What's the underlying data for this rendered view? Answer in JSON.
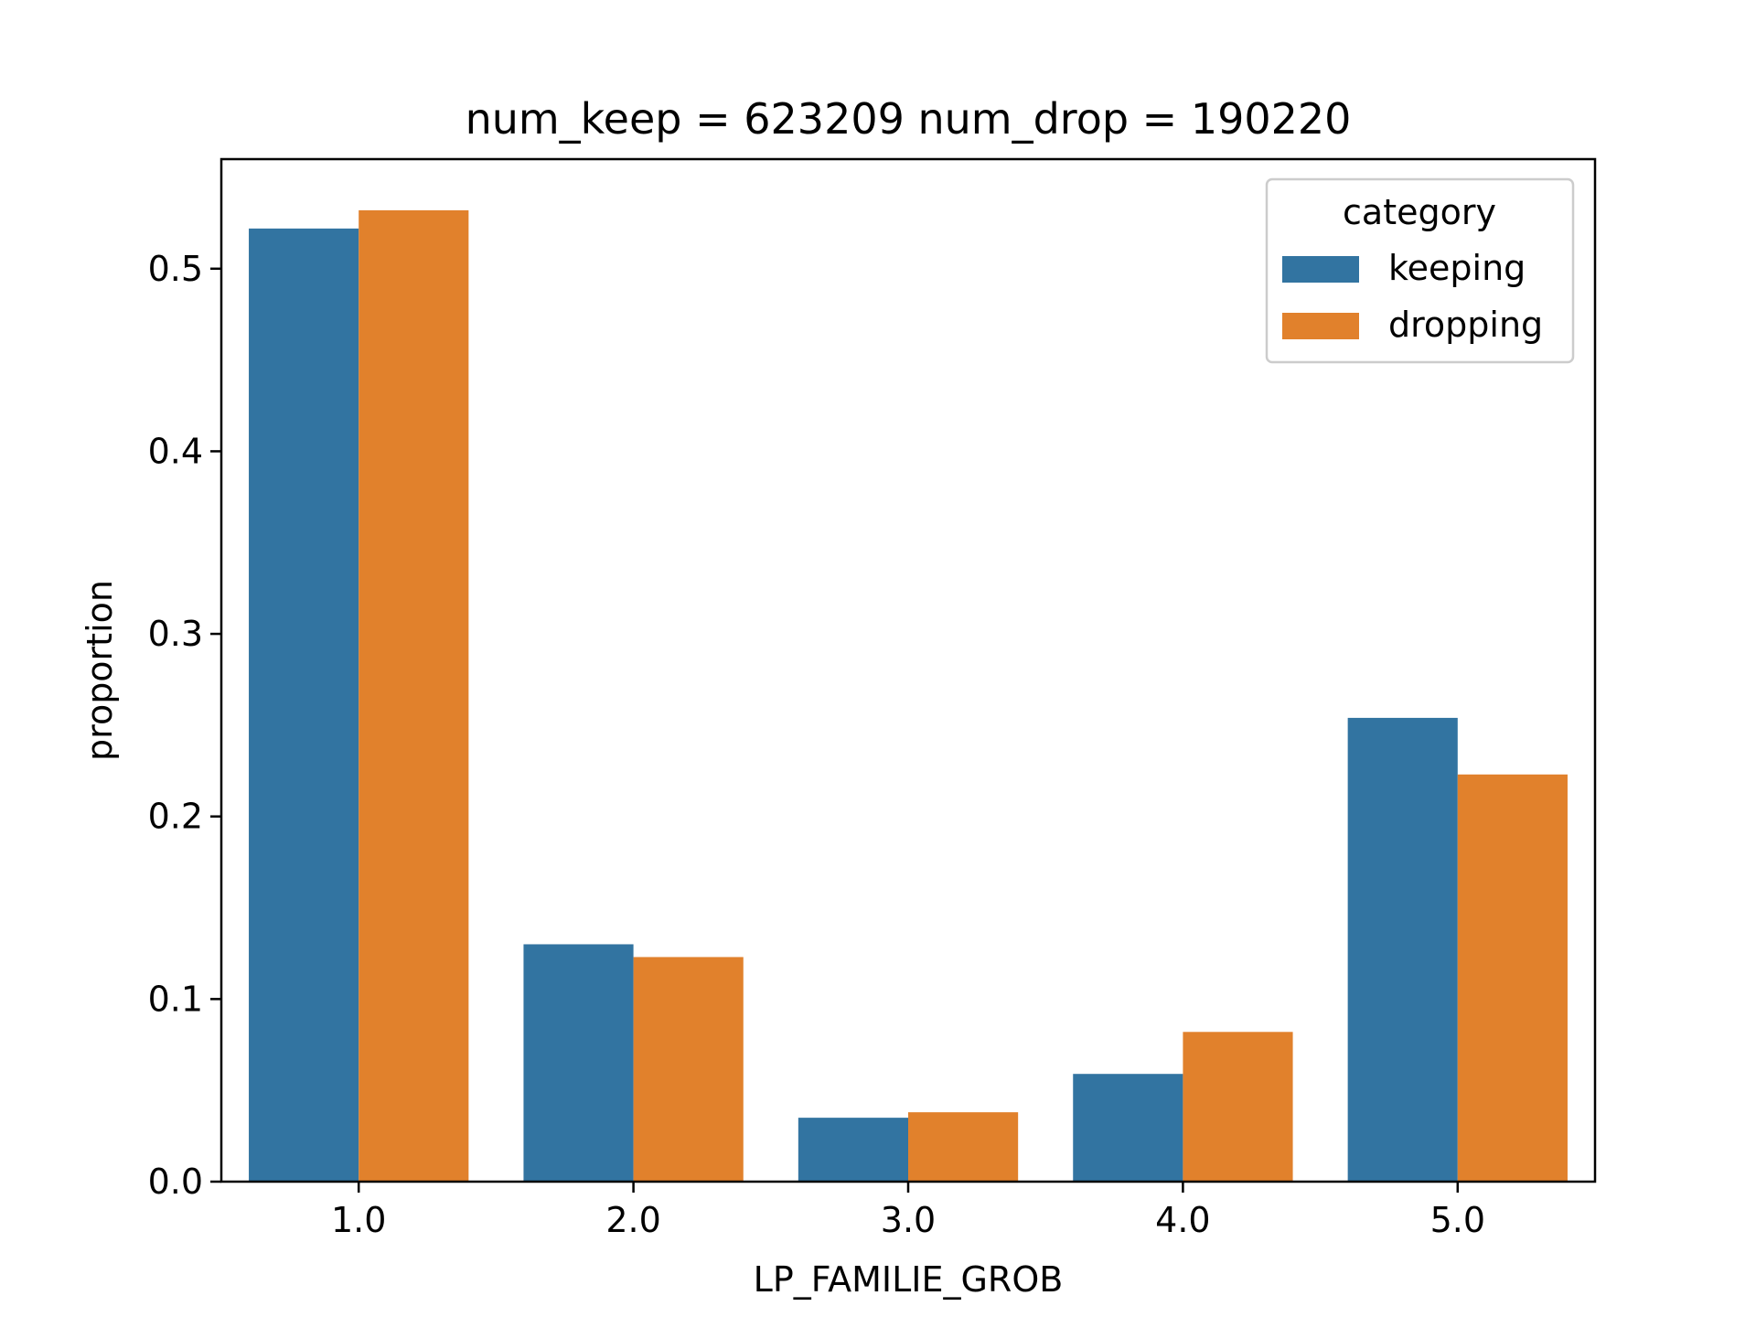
{
  "chart_data": {
    "type": "bar",
    "title": "num_keep = 623209  num_drop = 190220",
    "xlabel": "LP_FAMILIE_GROB",
    "ylabel": "proportion",
    "categories": [
      "1.0",
      "2.0",
      "3.0",
      "4.0",
      "5.0"
    ],
    "series": [
      {
        "name": "keeping",
        "color": "#3274a1",
        "values": [
          0.522,
          0.13,
          0.035,
          0.059,
          0.254
        ]
      },
      {
        "name": "dropping",
        "color": "#e1812c",
        "values": [
          0.532,
          0.123,
          0.038,
          0.082,
          0.223
        ]
      }
    ],
    "yticks": [
      "0.0",
      "0.1",
      "0.2",
      "0.3",
      "0.4",
      "0.5"
    ],
    "ylim": [
      0,
      0.56
    ],
    "grid": false,
    "legend": {
      "title": "category",
      "position": "top-right"
    }
  }
}
